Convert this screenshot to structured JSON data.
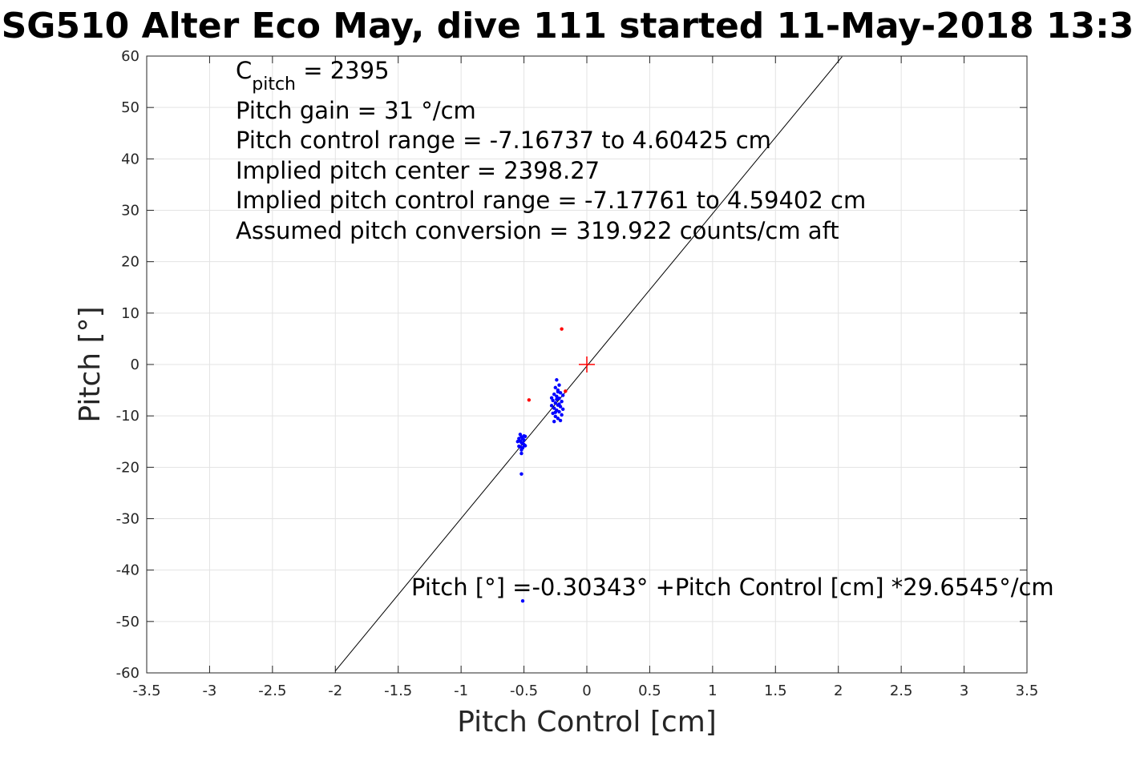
{
  "chart_data": {
    "type": "scatter",
    "title": "SG510 Alter Eco May, dive 111 started 11-May-2018 13:3",
    "xlabel": "Pitch Control [cm]",
    "ylabel": "Pitch [°]",
    "xlim": [
      -3.5,
      3.5
    ],
    "ylim": [
      -60,
      60
    ],
    "x_ticks": [
      -3.5,
      -3,
      -2.5,
      -2,
      -1.5,
      -1,
      -0.5,
      0,
      0.5,
      1,
      1.5,
      2,
      2.5,
      3,
      3.5
    ],
    "x_tick_labels": [
      "-3.5",
      "-3",
      "-2.5",
      "-2",
      "-1.5",
      "-1",
      "-0.5",
      "0",
      "0.5",
      "1",
      "1.5",
      "2",
      "2.5",
      "3",
      "3.5"
    ],
    "y_ticks": [
      -60,
      -50,
      -40,
      -30,
      -20,
      -10,
      0,
      10,
      20,
      30,
      40,
      50,
      60
    ],
    "y_tick_labels": [
      "-60",
      "-50",
      "-40",
      "-30",
      "-20",
      "-10",
      "0",
      "10",
      "20",
      "30",
      "40",
      "50",
      "60"
    ],
    "grid": true,
    "series": [
      {
        "color": "#0000ff",
        "marker": "dot",
        "points": [
          [
            -0.53,
            -13.6
          ],
          [
            -0.52,
            -14.1
          ],
          [
            -0.51,
            -14.5
          ],
          [
            -0.53,
            -14.9
          ],
          [
            -0.52,
            -15.2
          ],
          [
            -0.5,
            -15.6
          ],
          [
            -0.54,
            -15.9
          ],
          [
            -0.51,
            -16.2
          ],
          [
            -0.52,
            -16.6
          ],
          [
            -0.49,
            -14.0
          ],
          [
            -0.55,
            -15.0
          ],
          [
            -0.5,
            -13.9
          ],
          [
            -0.53,
            -16.0
          ],
          [
            -0.51,
            -15.3
          ],
          [
            -0.52,
            -17.3
          ],
          [
            -0.5,
            -14.7
          ],
          [
            -0.54,
            -14.4
          ],
          [
            -0.49,
            -15.8
          ],
          [
            -0.52,
            -21.3
          ],
          [
            -0.51,
            -46.0
          ],
          [
            -0.24,
            -3.0
          ],
          [
            -0.22,
            -4.0
          ],
          [
            -0.25,
            -4.5
          ],
          [
            -0.23,
            -5.0
          ],
          [
            -0.21,
            -5.5
          ],
          [
            -0.26,
            -5.8
          ],
          [
            -0.24,
            -6.2
          ],
          [
            -0.22,
            -6.6
          ],
          [
            -0.27,
            -7.0
          ],
          [
            -0.2,
            -7.2
          ],
          [
            -0.25,
            -7.5
          ],
          [
            -0.23,
            -7.9
          ],
          [
            -0.21,
            -8.2
          ],
          [
            -0.26,
            -8.5
          ],
          [
            -0.24,
            -8.9
          ],
          [
            -0.22,
            -9.2
          ],
          [
            -0.27,
            -9.5
          ],
          [
            -0.2,
            -9.8
          ],
          [
            -0.25,
            -10.1
          ],
          [
            -0.23,
            -10.5
          ],
          [
            -0.21,
            -10.9
          ],
          [
            -0.26,
            -11.1
          ],
          [
            -0.24,
            -6.8
          ],
          [
            -0.22,
            -7.7
          ],
          [
            -0.19,
            -6.0
          ],
          [
            -0.28,
            -8.0
          ],
          [
            -0.19,
            -8.7
          ],
          [
            -0.28,
            -6.5
          ],
          [
            -0.23,
            -5.3
          ],
          [
            -0.25,
            -9.3
          ]
        ]
      },
      {
        "color": "#ff0000",
        "marker": "dot",
        "points": [
          [
            -0.2,
            6.9
          ],
          [
            -0.46,
            -6.9
          ],
          [
            -0.17,
            -5.2
          ]
        ]
      }
    ],
    "fit_line": {
      "intercept": -0.30343,
      "slope": 29.6545,
      "x_range": [
        -2.0,
        2.03
      ],
      "color": "#000000"
    },
    "center_marker": {
      "x": 0,
      "y": 0,
      "color": "#ff0000",
      "marker": "plus"
    },
    "annotations": {
      "c_pitch_main": "C",
      "c_pitch_sub": "pitch",
      "c_pitch_value": " = 2395",
      "pitch_gain": "Pitch gain = 31 °/cm",
      "pitch_control_range": "Pitch control range = -7.16737 to 4.60425 cm",
      "implied_pitch_center": "Implied pitch center = 2398.27",
      "implied_pitch_control_range": "Implied pitch control range = -7.17761 to 4.59402 cm",
      "assumed_conversion": "Assumed pitch conversion = 319.922 counts/cm aft",
      "fit_equation": "Pitch [°] =-0.30343° +Pitch Control [cm] *29.6545°/cm"
    }
  }
}
